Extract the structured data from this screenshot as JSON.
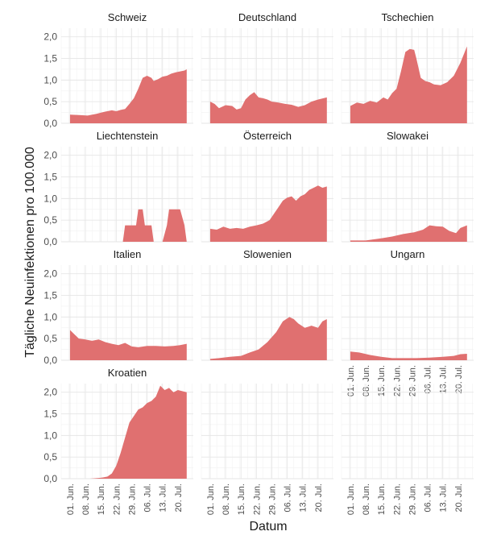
{
  "chart_data": {
    "type": "area",
    "facet_layout": "3 columns x 4 rows",
    "xlabel": "Datum",
    "ylabel": "Tägliche Neuinfektionen pro 100.000",
    "ylim": [
      0,
      2.2
    ],
    "ytick_values": [
      0,
      0.5,
      1.0,
      1.5,
      2.0
    ],
    "ytick_labels": [
      "0,0",
      "0,5",
      "1,0",
      "1,5",
      "2,0"
    ],
    "x_start": "2020-05-28",
    "x_end": "2020-07-27",
    "xtick_dates": [
      "2020-06-01",
      "2020-06-08",
      "2020-06-15",
      "2020-06-22",
      "2020-06-29",
      "2020-07-06",
      "2020-07-13",
      "2020-07-20"
    ],
    "xtick_labels": [
      "01. Jun.",
      "08. Jun.",
      "15. Jun.",
      "22. Jun.",
      "29. Jun.",
      "06. Jul.",
      "13. Jul.",
      "20. Jul."
    ],
    "color": "#e07070",
    "grid": true,
    "panels": [
      {
        "name": "Schweiz",
        "points": [
          [
            "2020-06-01",
            0.2
          ],
          [
            "2020-06-05",
            0.19
          ],
          [
            "2020-06-09",
            0.18
          ],
          [
            "2020-06-13",
            0.22
          ],
          [
            "2020-06-17",
            0.27
          ],
          [
            "2020-06-20",
            0.3
          ],
          [
            "2020-06-22",
            0.28
          ],
          [
            "2020-06-24",
            0.31
          ],
          [
            "2020-06-26",
            0.33
          ],
          [
            "2020-06-28",
            0.45
          ],
          [
            "2020-06-30",
            0.58
          ],
          [
            "2020-07-02",
            0.8
          ],
          [
            "2020-07-04",
            1.05
          ],
          [
            "2020-07-06",
            1.1
          ],
          [
            "2020-07-08",
            1.05
          ],
          [
            "2020-07-09",
            0.98
          ],
          [
            "2020-07-11",
            1.02
          ],
          [
            "2020-07-13",
            1.08
          ],
          [
            "2020-07-15",
            1.1
          ],
          [
            "2020-07-17",
            1.15
          ],
          [
            "2020-07-19",
            1.18
          ],
          [
            "2020-07-21",
            1.2
          ],
          [
            "2020-07-23",
            1.22
          ],
          [
            "2020-07-24",
            1.25
          ]
        ]
      },
      {
        "name": "Deutschland",
        "points": [
          [
            "2020-06-01",
            0.5
          ],
          [
            "2020-06-03",
            0.45
          ],
          [
            "2020-06-05",
            0.35
          ],
          [
            "2020-06-08",
            0.42
          ],
          [
            "2020-06-11",
            0.4
          ],
          [
            "2020-06-13",
            0.32
          ],
          [
            "2020-06-15",
            0.35
          ],
          [
            "2020-06-17",
            0.55
          ],
          [
            "2020-06-19",
            0.65
          ],
          [
            "2020-06-21",
            0.72
          ],
          [
            "2020-06-23",
            0.6
          ],
          [
            "2020-06-25",
            0.58
          ],
          [
            "2020-06-27",
            0.55
          ],
          [
            "2020-06-29",
            0.5
          ],
          [
            "2020-07-02",
            0.48
          ],
          [
            "2020-07-05",
            0.45
          ],
          [
            "2020-07-08",
            0.43
          ],
          [
            "2020-07-11",
            0.38
          ],
          [
            "2020-07-14",
            0.42
          ],
          [
            "2020-07-17",
            0.5
          ],
          [
            "2020-07-20",
            0.55
          ],
          [
            "2020-07-24",
            0.6
          ]
        ]
      },
      {
        "name": "Tschechien",
        "points": [
          [
            "2020-06-01",
            0.4
          ],
          [
            "2020-06-04",
            0.48
          ],
          [
            "2020-06-07",
            0.45
          ],
          [
            "2020-06-10",
            0.52
          ],
          [
            "2020-06-13",
            0.48
          ],
          [
            "2020-06-16",
            0.6
          ],
          [
            "2020-06-18",
            0.55
          ],
          [
            "2020-06-20",
            0.7
          ],
          [
            "2020-06-22",
            0.8
          ],
          [
            "2020-06-24",
            1.2
          ],
          [
            "2020-06-26",
            1.65
          ],
          [
            "2020-06-28",
            1.72
          ],
          [
            "2020-06-30",
            1.7
          ],
          [
            "2020-07-01",
            1.5
          ],
          [
            "2020-07-03",
            1.05
          ],
          [
            "2020-07-05",
            0.98
          ],
          [
            "2020-07-07",
            0.95
          ],
          [
            "2020-07-09",
            0.9
          ],
          [
            "2020-07-12",
            0.88
          ],
          [
            "2020-07-15",
            0.95
          ],
          [
            "2020-07-18",
            1.1
          ],
          [
            "2020-07-21",
            1.4
          ],
          [
            "2020-07-24",
            1.78
          ]
        ]
      },
      {
        "name": "Liechtenstein",
        "points": [
          [
            "2020-06-01",
            0
          ],
          [
            "2020-06-25",
            0
          ],
          [
            "2020-06-26",
            0.38
          ],
          [
            "2020-07-01",
            0.38
          ],
          [
            "2020-07-02",
            0.75
          ],
          [
            "2020-07-04",
            0.75
          ],
          [
            "2020-07-05",
            0.38
          ],
          [
            "2020-07-08",
            0.38
          ],
          [
            "2020-07-09",
            0
          ],
          [
            "2020-07-13",
            0
          ],
          [
            "2020-07-15",
            0.38
          ],
          [
            "2020-07-16",
            0.75
          ],
          [
            "2020-07-21",
            0.75
          ],
          [
            "2020-07-23",
            0.38
          ],
          [
            "2020-07-24",
            0
          ]
        ]
      },
      {
        "name": "Österreich",
        "points": [
          [
            "2020-06-01",
            0.3
          ],
          [
            "2020-06-04",
            0.28
          ],
          [
            "2020-06-07",
            0.35
          ],
          [
            "2020-06-10",
            0.3
          ],
          [
            "2020-06-13",
            0.32
          ],
          [
            "2020-06-16",
            0.3
          ],
          [
            "2020-06-19",
            0.35
          ],
          [
            "2020-06-22",
            0.38
          ],
          [
            "2020-06-25",
            0.42
          ],
          [
            "2020-06-28",
            0.5
          ],
          [
            "2020-06-30",
            0.65
          ],
          [
            "2020-07-02",
            0.8
          ],
          [
            "2020-07-04",
            0.95
          ],
          [
            "2020-07-06",
            1.02
          ],
          [
            "2020-07-08",
            1.05
          ],
          [
            "2020-07-10",
            0.95
          ],
          [
            "2020-07-12",
            1.05
          ],
          [
            "2020-07-14",
            1.1
          ],
          [
            "2020-07-16",
            1.2
          ],
          [
            "2020-07-18",
            1.25
          ],
          [
            "2020-07-20",
            1.3
          ],
          [
            "2020-07-22",
            1.25
          ],
          [
            "2020-07-24",
            1.28
          ]
        ]
      },
      {
        "name": "Slowakei",
        "points": [
          [
            "2020-06-01",
            0.03
          ],
          [
            "2020-06-08",
            0.03
          ],
          [
            "2020-06-15",
            0.08
          ],
          [
            "2020-06-20",
            0.12
          ],
          [
            "2020-06-25",
            0.18
          ],
          [
            "2020-06-30",
            0.22
          ],
          [
            "2020-07-04",
            0.28
          ],
          [
            "2020-07-07",
            0.38
          ],
          [
            "2020-07-10",
            0.36
          ],
          [
            "2020-07-13",
            0.35
          ],
          [
            "2020-07-16",
            0.25
          ],
          [
            "2020-07-19",
            0.2
          ],
          [
            "2020-07-21",
            0.32
          ],
          [
            "2020-07-24",
            0.38
          ]
        ]
      },
      {
        "name": "Italien",
        "points": [
          [
            "2020-06-01",
            0.7
          ],
          [
            "2020-06-03",
            0.6
          ],
          [
            "2020-06-05",
            0.5
          ],
          [
            "2020-06-08",
            0.48
          ],
          [
            "2020-06-11",
            0.45
          ],
          [
            "2020-06-14",
            0.48
          ],
          [
            "2020-06-17",
            0.42
          ],
          [
            "2020-06-20",
            0.38
          ],
          [
            "2020-06-23",
            0.35
          ],
          [
            "2020-06-26",
            0.4
          ],
          [
            "2020-06-29",
            0.32
          ],
          [
            "2020-07-02",
            0.3
          ],
          [
            "2020-07-06",
            0.33
          ],
          [
            "2020-07-10",
            0.33
          ],
          [
            "2020-07-14",
            0.32
          ],
          [
            "2020-07-18",
            0.33
          ],
          [
            "2020-07-21",
            0.35
          ],
          [
            "2020-07-24",
            0.38
          ]
        ]
      },
      {
        "name": "Slowenien",
        "points": [
          [
            "2020-06-01",
            0.03
          ],
          [
            "2020-06-05",
            0.05
          ],
          [
            "2020-06-10",
            0.08
          ],
          [
            "2020-06-15",
            0.1
          ],
          [
            "2020-06-19",
            0.18
          ],
          [
            "2020-06-23",
            0.25
          ],
          [
            "2020-06-27",
            0.42
          ],
          [
            "2020-07-01",
            0.65
          ],
          [
            "2020-07-04",
            0.9
          ],
          [
            "2020-07-07",
            1.0
          ],
          [
            "2020-07-09",
            0.95
          ],
          [
            "2020-07-11",
            0.85
          ],
          [
            "2020-07-14",
            0.75
          ],
          [
            "2020-07-17",
            0.8
          ],
          [
            "2020-07-20",
            0.75
          ],
          [
            "2020-07-22",
            0.9
          ],
          [
            "2020-07-24",
            0.95
          ]
        ]
      },
      {
        "name": "Ungarn",
        "points": [
          [
            "2020-06-01",
            0.2
          ],
          [
            "2020-06-05",
            0.18
          ],
          [
            "2020-06-10",
            0.12
          ],
          [
            "2020-06-15",
            0.08
          ],
          [
            "2020-06-20",
            0.05
          ],
          [
            "2020-06-25",
            0.05
          ],
          [
            "2020-07-01",
            0.05
          ],
          [
            "2020-07-07",
            0.06
          ],
          [
            "2020-07-13",
            0.08
          ],
          [
            "2020-07-18",
            0.1
          ],
          [
            "2020-07-21",
            0.14
          ],
          [
            "2020-07-24",
            0.15
          ]
        ]
      },
      {
        "name": "Kroatien",
        "points": [
          [
            "2020-06-01",
            0.0
          ],
          [
            "2020-06-10",
            0.0
          ],
          [
            "2020-06-15",
            0.02
          ],
          [
            "2020-06-18",
            0.05
          ],
          [
            "2020-06-20",
            0.12
          ],
          [
            "2020-06-22",
            0.3
          ],
          [
            "2020-06-24",
            0.6
          ],
          [
            "2020-06-26",
            0.95
          ],
          [
            "2020-06-28",
            1.3
          ],
          [
            "2020-06-30",
            1.45
          ],
          [
            "2020-07-02",
            1.6
          ],
          [
            "2020-07-04",
            1.65
          ],
          [
            "2020-07-06",
            1.75
          ],
          [
            "2020-07-08",
            1.8
          ],
          [
            "2020-07-10",
            1.9
          ],
          [
            "2020-07-12",
            2.15
          ],
          [
            "2020-07-14",
            2.05
          ],
          [
            "2020-07-16",
            2.1
          ],
          [
            "2020-07-18",
            2.0
          ],
          [
            "2020-07-20",
            2.05
          ],
          [
            "2020-07-24",
            2.0
          ]
        ]
      }
    ]
  }
}
